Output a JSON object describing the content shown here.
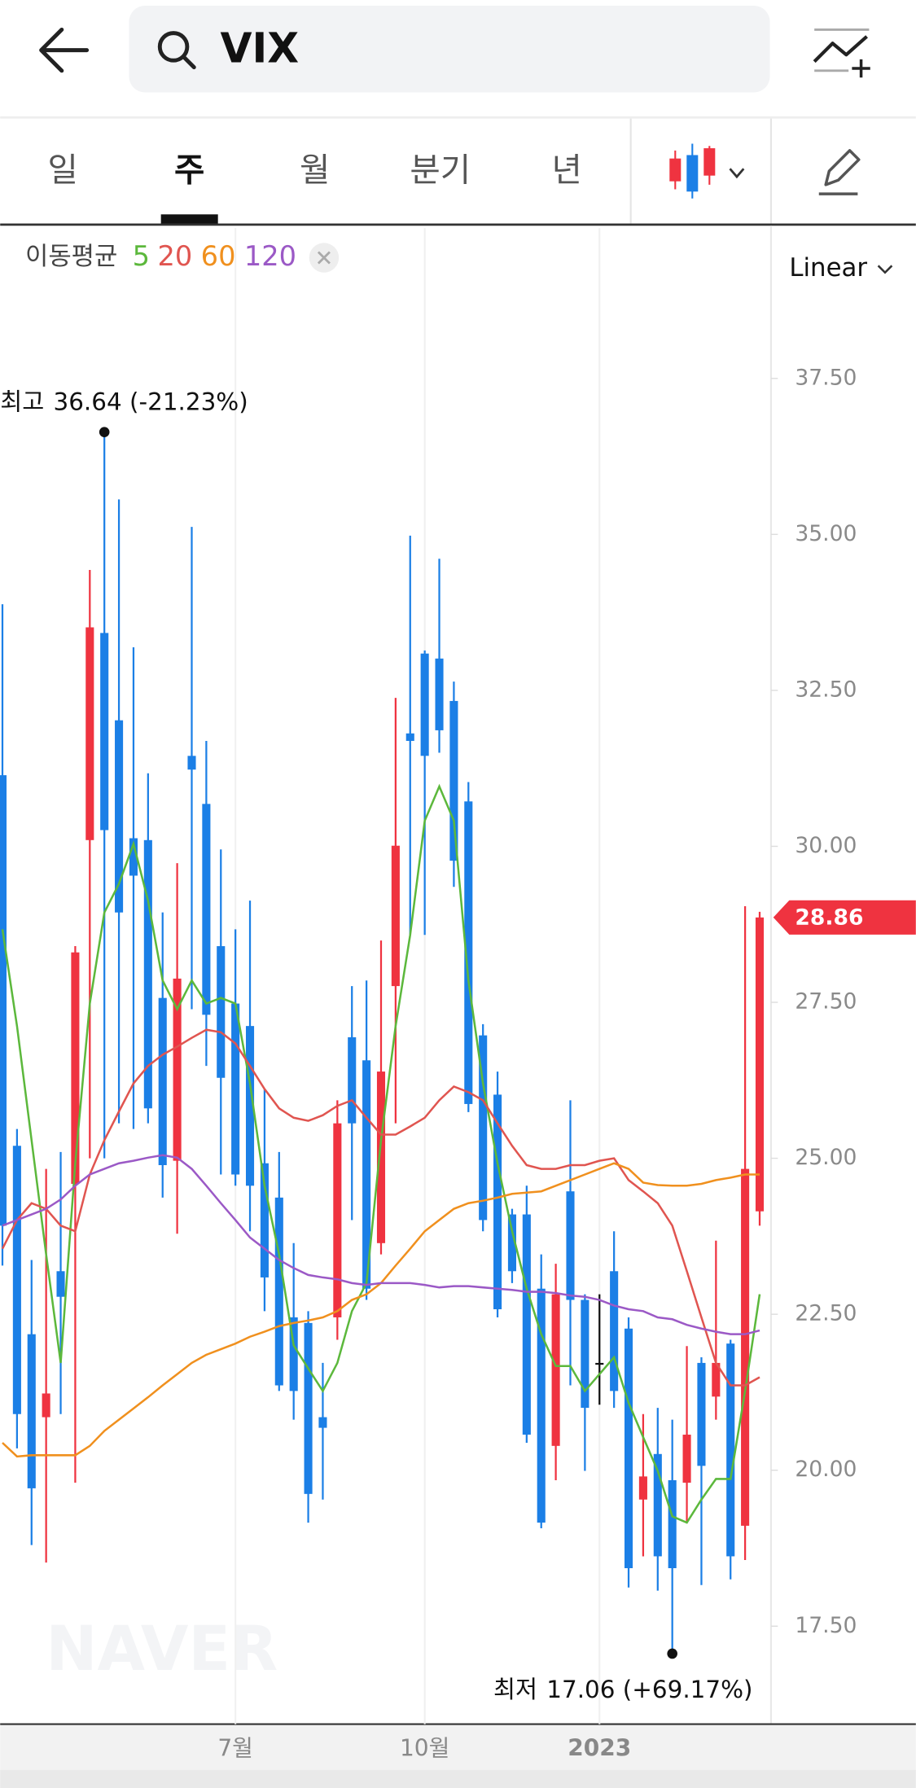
{
  "header": {
    "search": "VIX"
  },
  "tabs": [
    "일",
    "주",
    "월",
    "분기",
    "년"
  ],
  "chart_data": {
    "type": "candlestick",
    "ma_label": "이동평균",
    "scale_label": "Linear",
    "watermark": "NAVER",
    "max_label": "최고",
    "max_text": "36.64 (-21.23%)",
    "min_label": "최저",
    "min_text": "17.06 (+69.17%)",
    "up_color": "#ef3340",
    "down_color": "#1b7fe6",
    "flat_color": "#111111",
    "categories": [
      null,
      null,
      null,
      null,
      null,
      null,
      null,
      null,
      null,
      null,
      null,
      null,
      null,
      null,
      null,
      null,
      "7월",
      null,
      null,
      null,
      null,
      null,
      null,
      null,
      null,
      null,
      null,
      null,
      null,
      "10월",
      null,
      null,
      null,
      null,
      null,
      null,
      null,
      null,
      null,
      null,
      null,
      "2023",
      null,
      null,
      null,
      null,
      null,
      null,
      null,
      null,
      null,
      null,
      null
    ],
    "open": [
      31.14,
      25.2,
      22.18,
      20.85,
      23.19,
      24.59,
      30.1,
      33.42,
      32.02,
      30.13,
      30.1,
      27.57,
      24.96,
      31.45,
      30.68,
      28.4,
      27.48,
      27.12,
      24.92,
      24.37,
      22.45,
      22.36,
      20.85,
      22.45,
      26.94,
      26.57,
      23.64,
      27.76,
      31.81,
      33.09,
      33.01,
      32.33,
      30.72,
      26.97,
      26.02,
      24.1,
      24.1,
      22.91,
      20.39,
      24.47,
      22.73,
      21.72,
      23.19,
      22.27,
      19.53,
      20.26,
      19.84,
      19.8,
      21.72,
      21.18,
      22.03,
      19.11,
      24.15
    ],
    "high": [
      33.88,
      25.47,
      23.37,
      24.83,
      25.1,
      28.4,
      34.43,
      36.64,
      35.56,
      33.19,
      31.17,
      28.94,
      29.73,
      35.12,
      31.69,
      29.95,
      28.67,
      29.13,
      26.11,
      25.1,
      23.64,
      22.55,
      21.72,
      25.93,
      27.76,
      27.85,
      28.49,
      32.38,
      34.98,
      33.14,
      34.61,
      32.64,
      31.03,
      27.15,
      26.39,
      24.19,
      24.56,
      23.46,
      23.31,
      25.93,
      22.82,
      22.82,
      23.83,
      22.45,
      20.9,
      21.0,
      20.81,
      21.99,
      21.81,
      23.68,
      22.09,
      29.04,
      28.95
    ],
    "low": [
      23.28,
      20.35,
      18.8,
      18.52,
      20.9,
      19.8,
      25.0,
      25.0,
      25.56,
      25.47,
      25.56,
      24.37,
      23.79,
      27.39,
      26.48,
      24.74,
      24.56,
      23.83,
      22.55,
      21.27,
      20.81,
      19.16,
      19.53,
      22.09,
      24.01,
      22.73,
      23.46,
      25.56,
      28.58,
      28.58,
      31.5,
      29.35,
      25.74,
      23.83,
      22.45,
      23.0,
      20.44,
      19.07,
      19.84,
      21.36,
      19.99,
      21.05,
      21.0,
      18.12,
      18.62,
      18.07,
      17.06,
      19.16,
      18.16,
      20.81,
      18.25,
      18.56,
      23.92
    ],
    "close": [
      23.92,
      20.9,
      19.71,
      21.23,
      22.78,
      28.3,
      33.51,
      30.26,
      28.94,
      29.53,
      25.8,
      24.89,
      27.88,
      31.23,
      27.3,
      26.29,
      24.74,
      24.56,
      23.09,
      21.36,
      21.27,
      19.62,
      20.68,
      25.56,
      25.56,
      22.91,
      26.39,
      30.01,
      31.69,
      31.45,
      31.86,
      29.77,
      25.87,
      24.01,
      22.58,
      23.19,
      20.57,
      19.16,
      22.82,
      22.73,
      21.0,
      21.72,
      21.27,
      18.43,
      19.9,
      18.62,
      18.43,
      20.57,
      20.07,
      21.72,
      18.62,
      24.83,
      28.86
    ],
    "moving_averages": [
      {
        "name": "5",
        "color": "#5cb83c",
        "values": [
          28.67,
          27.12,
          25.29,
          23.46,
          21.72,
          24.92,
          27.48,
          28.94,
          29.4,
          30.04,
          29.13,
          27.85,
          27.39,
          27.85,
          27.48,
          27.57,
          27.48,
          26.2,
          24.56,
          23.46,
          22.0,
          21.63,
          21.27,
          21.72,
          22.55,
          23.0,
          25.29,
          27.12,
          28.58,
          30.41,
          30.96,
          30.41,
          27.85,
          26.2,
          24.92,
          23.83,
          22.91,
          22.18,
          21.67,
          21.67,
          21.27,
          21.54,
          21.81,
          21.08,
          20.53,
          19.99,
          19.26,
          19.16,
          19.53,
          19.86,
          19.86,
          21.27,
          22.82
        ]
      },
      {
        "name": "20",
        "color": "#e05550",
        "values": [
          23.55,
          24.01,
          24.28,
          24.19,
          23.92,
          23.83,
          24.74,
          25.29,
          25.75,
          26.2,
          26.48,
          26.66,
          26.79,
          26.93,
          27.06,
          27.02,
          26.84,
          26.48,
          26.11,
          25.8,
          25.65,
          25.6,
          25.69,
          25.84,
          25.93,
          25.65,
          25.38,
          25.38,
          25.51,
          25.65,
          25.93,
          26.15,
          26.06,
          25.93,
          25.56,
          25.2,
          24.89,
          24.83,
          24.83,
          24.89,
          24.89,
          24.96,
          25.0,
          24.65,
          24.47,
          24.28,
          23.92,
          23.19,
          22.45,
          21.72,
          21.36,
          21.36,
          21.49
        ]
      },
      {
        "name": "60",
        "color": "#f0901e",
        "values": [
          20.44,
          20.22,
          20.24,
          20.24,
          20.24,
          20.24,
          20.39,
          20.63,
          20.81,
          20.99,
          21.17,
          21.36,
          21.54,
          21.72,
          21.85,
          21.94,
          22.03,
          22.14,
          22.22,
          22.31,
          22.36,
          22.4,
          22.45,
          22.55,
          22.73,
          22.82,
          23.0,
          23.28,
          23.55,
          23.83,
          24.01,
          24.19,
          24.28,
          24.32,
          24.37,
          24.43,
          24.45,
          24.47,
          24.56,
          24.65,
          24.74,
          24.83,
          24.92,
          24.83,
          24.61,
          24.57,
          24.56,
          24.56,
          24.59,
          24.65,
          24.69,
          24.74,
          24.74
        ]
      },
      {
        "name": "120",
        "color": "#9b59c6",
        "values": [
          23.92,
          24.01,
          24.1,
          24.19,
          24.34,
          24.56,
          24.74,
          24.83,
          24.92,
          24.96,
          25.01,
          25.05,
          25.01,
          24.83,
          24.56,
          24.28,
          24.01,
          23.73,
          23.55,
          23.37,
          23.24,
          23.13,
          23.09,
          23.06,
          23.0,
          22.97,
          23.0,
          23.0,
          23.0,
          22.97,
          22.93,
          22.95,
          22.95,
          22.93,
          22.91,
          22.89,
          22.86,
          22.86,
          22.84,
          22.8,
          22.78,
          22.73,
          22.64,
          22.58,
          22.55,
          22.45,
          22.42,
          22.33,
          22.27,
          22.22,
          22.18,
          22.18,
          22.24
        ]
      }
    ],
    "ylim": [
      15.93,
      39.91
    ],
    "yticks": [
      {
        "value": 17.5,
        "label": "17.50"
      },
      {
        "value": 20,
        "label": "20.00"
      },
      {
        "value": 22.5,
        "label": "22.50"
      },
      {
        "value": 25,
        "label": "25.00"
      },
      {
        "value": 27.5,
        "label": "27.50"
      },
      {
        "value": 30,
        "label": "30.00"
      },
      {
        "value": 32.5,
        "label": "32.50"
      },
      {
        "value": 35,
        "label": "35.00"
      },
      {
        "value": 37.5,
        "label": "37.50"
      }
    ],
    "grid": true
  }
}
